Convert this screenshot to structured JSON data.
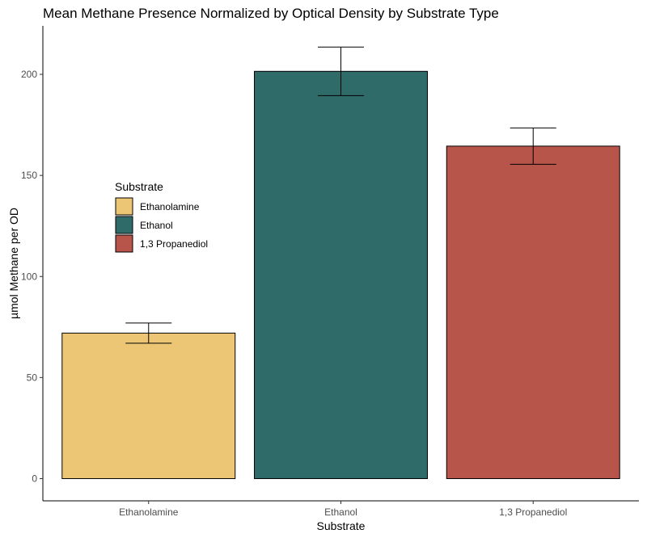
{
  "chart_data": {
    "type": "bar",
    "title": "Mean Methane Presence Normalized by Optical Density by Substrate Type",
    "xlabel": "Substrate",
    "ylabel": "µmol Methane per OD",
    "categories": [
      "Ethanolamine",
      "Ethanol",
      "1,3 Propanediol"
    ],
    "values": [
      72,
      201.5,
      164.5
    ],
    "error_low": [
      67,
      189.5,
      155.5
    ],
    "error_high": [
      77,
      213.5,
      173.5
    ],
    "colors": [
      "#ECC675",
      "#2E6B69",
      "#B8554B"
    ],
    "ylim": [
      -11,
      224
    ],
    "yticks": [
      0,
      50,
      100,
      150,
      200
    ],
    "grid": false,
    "legend": {
      "title": "Substrate",
      "position": "left",
      "entries": [
        "Ethanolamine",
        "Ethanol",
        "1,3 Propanediol"
      ]
    }
  }
}
